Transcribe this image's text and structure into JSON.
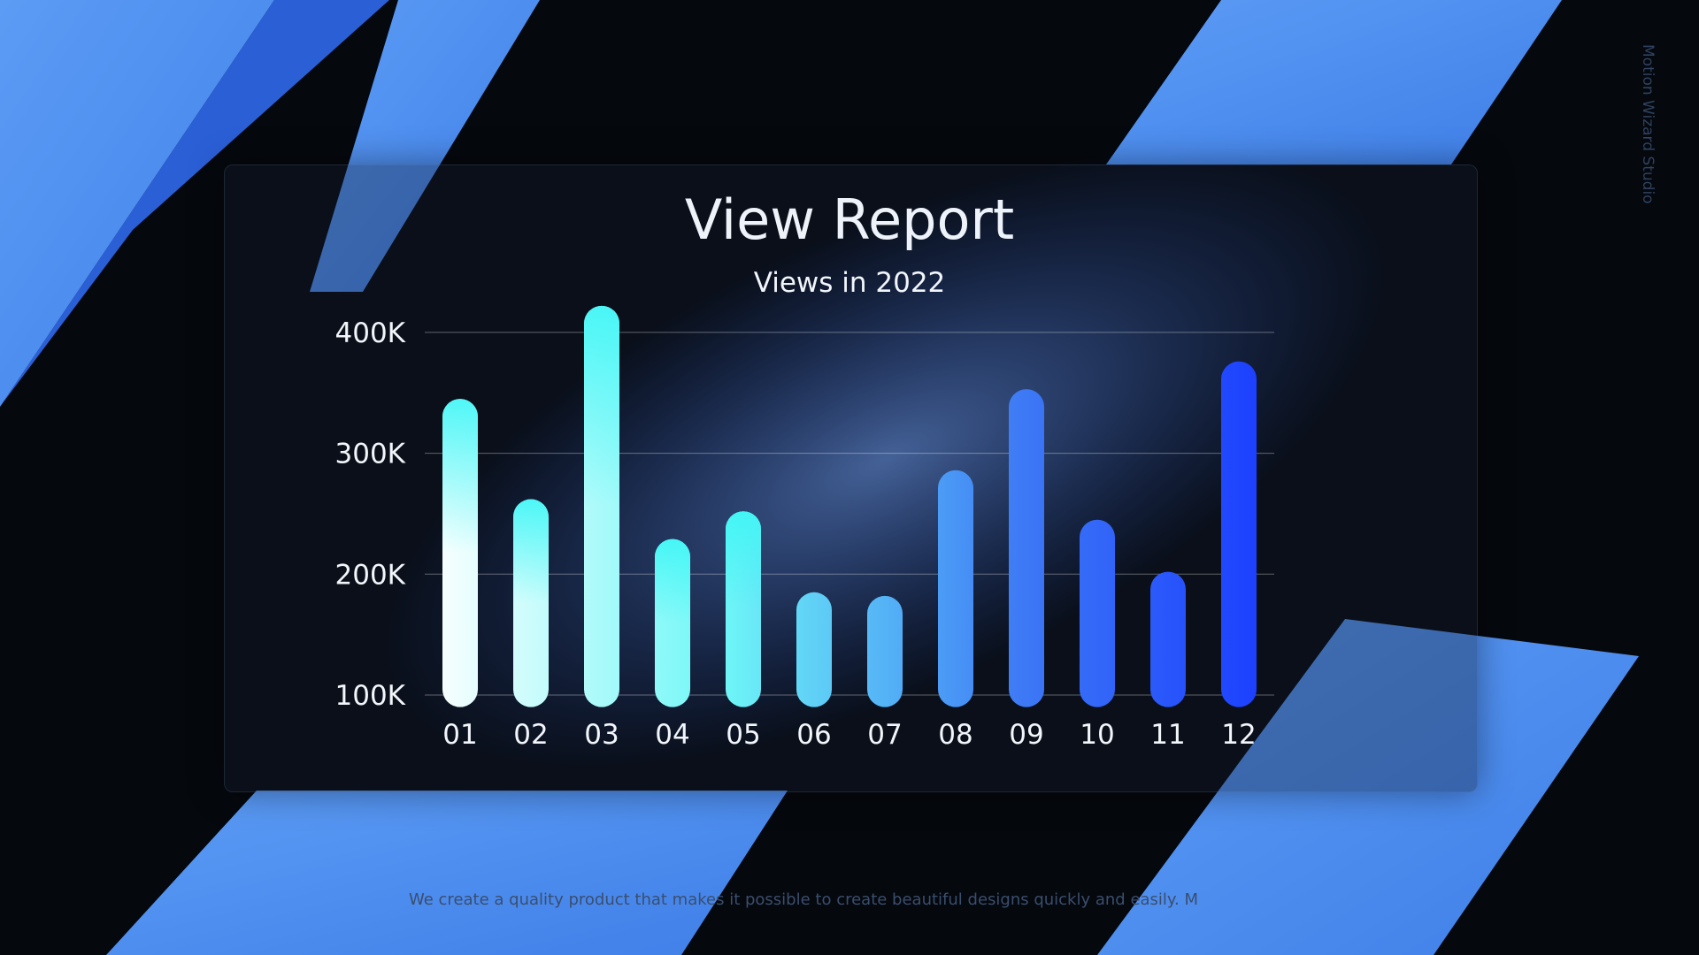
{
  "chart_data": {
    "type": "bar",
    "title": "View Report",
    "subtitle": "Views in 2022",
    "categories": [
      "01",
      "02",
      "03",
      "04",
      "05",
      "06",
      "07",
      "08",
      "09",
      "10",
      "11",
      "12"
    ],
    "values": [
      345000,
      262000,
      422000,
      229000,
      252000,
      185000,
      182000,
      286000,
      353000,
      245000,
      202000,
      376000
    ],
    "yticks": [
      {
        "value": 100000,
        "label": "100K"
      },
      {
        "value": 200000,
        "label": "200K"
      },
      {
        "value": 300000,
        "label": "300K"
      },
      {
        "value": 400000,
        "label": "400K"
      }
    ],
    "ylim": [
      90000,
      430000
    ],
    "grid": true,
    "bar_gradient_colors": [
      "#ffffff",
      "#3ff6f6",
      "#1a3cff"
    ]
  },
  "footer_text": "We create a quality product that makes it possible to create beautiful designs quickly and easily. M",
  "brand": "Motion Wizard Studio",
  "colors": {
    "background": "#05080d",
    "ribbon": "#4a8ef0",
    "text": "#f2f6fb"
  }
}
